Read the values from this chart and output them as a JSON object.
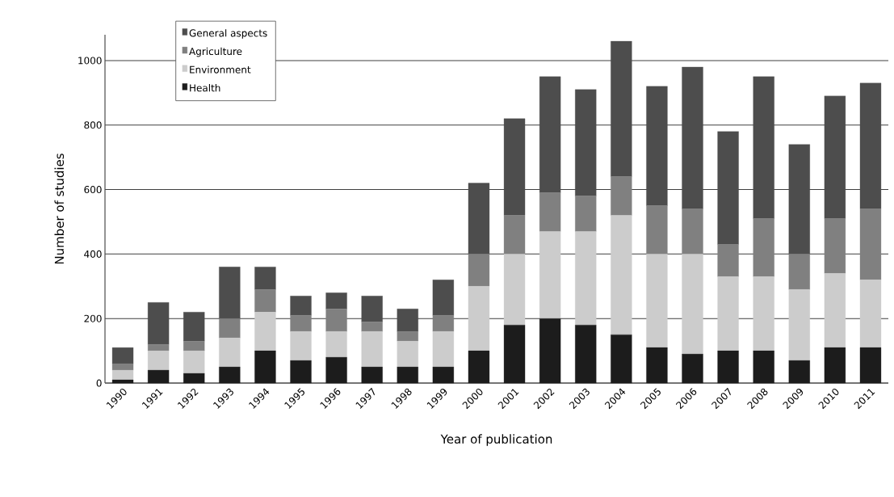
{
  "chart_data": {
    "type": "bar",
    "stacked": true,
    "xlabel": "Year of publication",
    "ylabel": "Number of studies",
    "categories": [
      "1990",
      "1991",
      "1992",
      "1993",
      "1994",
      "1995",
      "1996",
      "1997",
      "1998",
      "1999",
      "2000",
      "2001",
      "2002",
      "2003",
      "2004",
      "2005",
      "2006",
      "2007",
      "2008",
      "2009",
      "2010",
      "2011"
    ],
    "series": [
      {
        "name": "Health",
        "color": "#1c1c1c",
        "values": [
          10,
          40,
          30,
          50,
          100,
          70,
          80,
          50,
          50,
          50,
          100,
          180,
          200,
          180,
          150,
          110,
          90,
          100,
          100,
          70,
          110,
          110
        ]
      },
      {
        "name": "Environment",
        "color": "#cccccc",
        "values": [
          30,
          60,
          70,
          90,
          120,
          90,
          80,
          110,
          80,
          110,
          200,
          220,
          270,
          290,
          370,
          290,
          310,
          230,
          230,
          220,
          230,
          210
        ]
      },
      {
        "name": "Agriculture",
        "color": "#808080",
        "values": [
          20,
          20,
          30,
          60,
          70,
          50,
          70,
          30,
          30,
          50,
          100,
          120,
          120,
          110,
          120,
          150,
          140,
          100,
          180,
          110,
          170,
          220
        ]
      },
      {
        "name": "General aspects",
        "color": "#4d4d4d",
        "values": [
          50,
          130,
          90,
          160,
          70,
          60,
          50,
          80,
          70,
          110,
          220,
          300,
          360,
          330,
          420,
          370,
          440,
          350,
          440,
          340,
          380,
          390
        ]
      }
    ],
    "ylim": [
      0,
      1080
    ],
    "yticks": [
      0,
      200,
      400,
      600,
      800,
      1000
    ],
    "grid": "y",
    "legend": "top left"
  }
}
